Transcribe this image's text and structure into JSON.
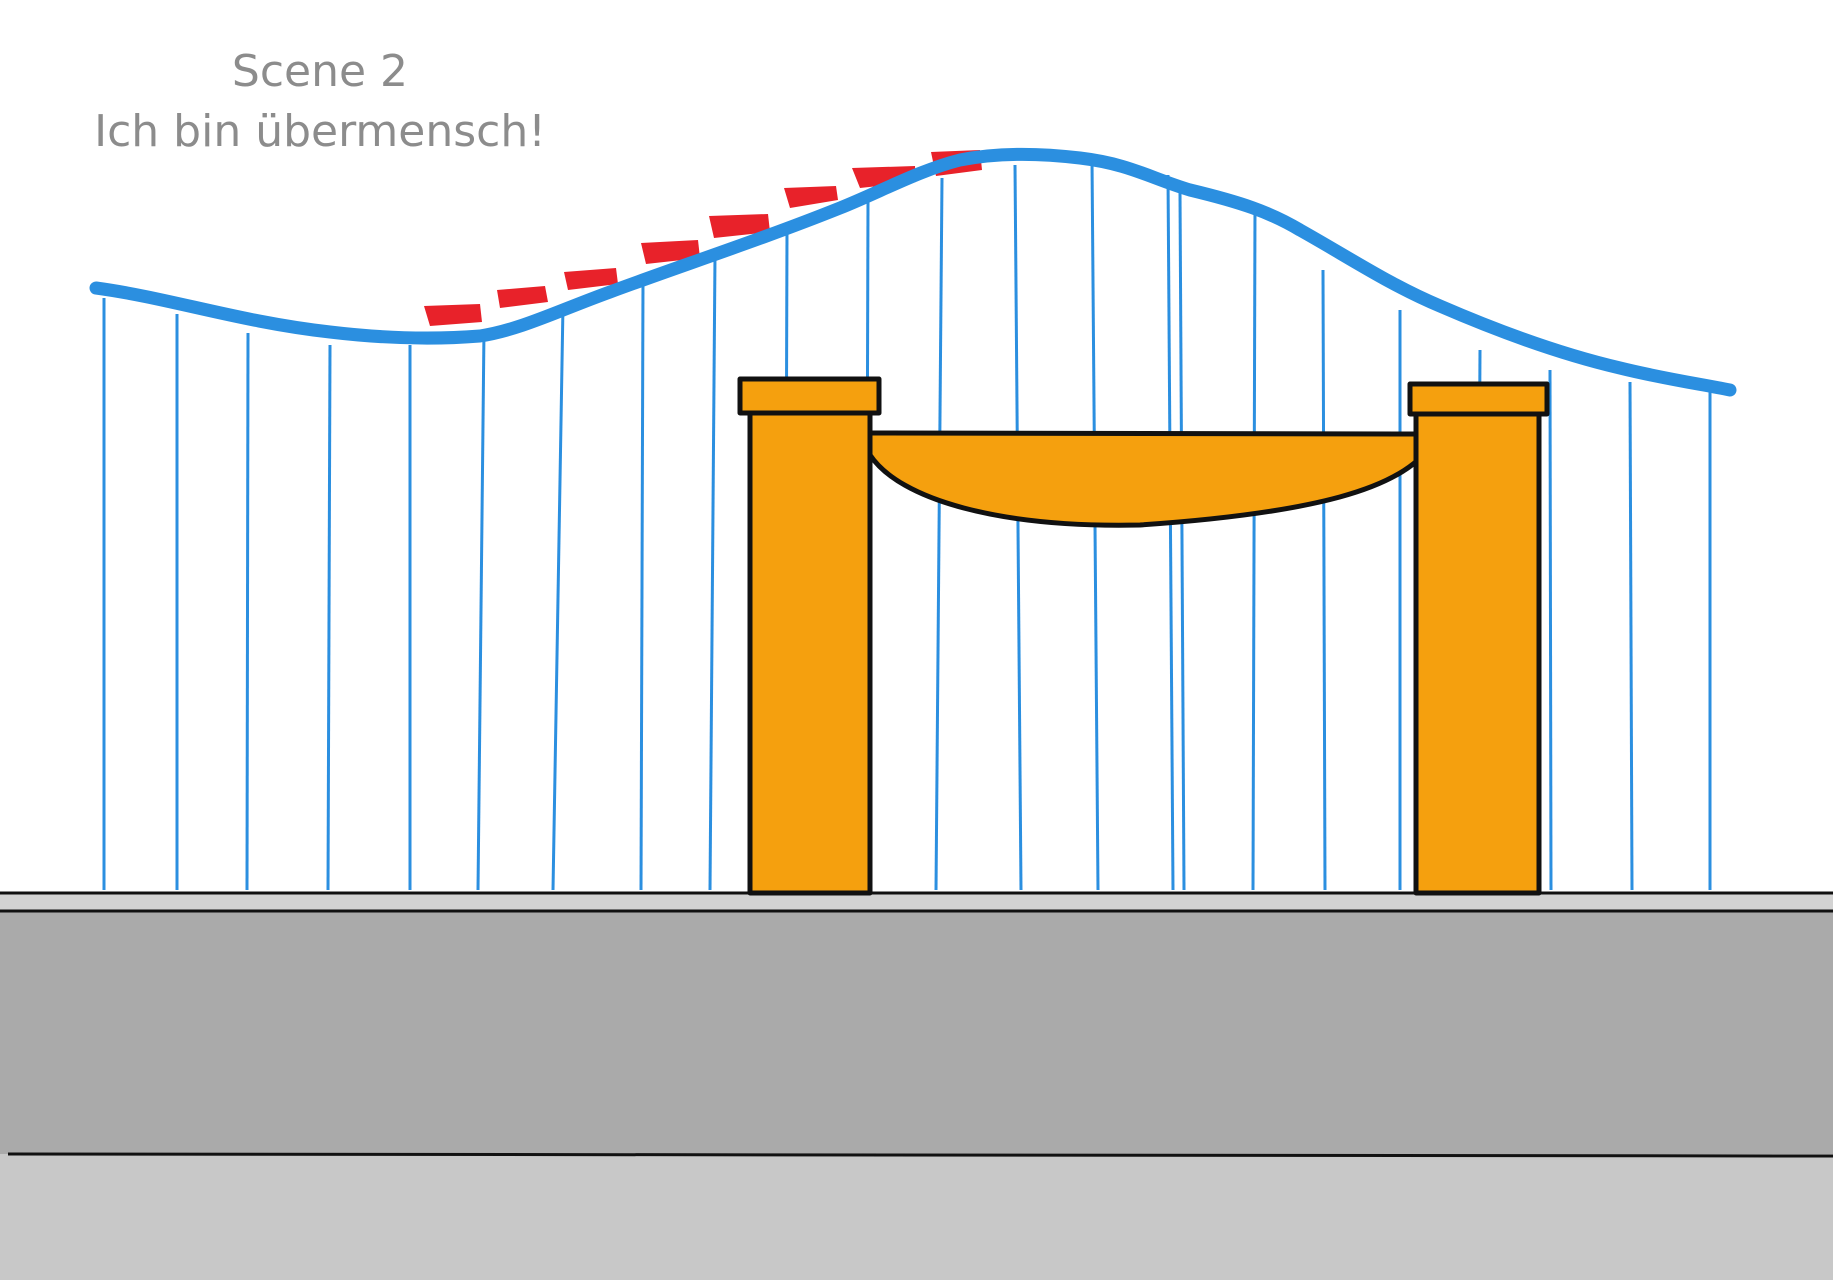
{
  "caption": {
    "line1": "Scene 2",
    "line2": "Ich bin übermensch!"
  },
  "colors": {
    "track": "#2b8fe0",
    "supports": "#2b8fe0",
    "cars": "#e8222a",
    "gate": "#f5a00e",
    "outline": "#111111",
    "ground_top": "#d3d3d3",
    "ground_middle": "#aaaaaa",
    "ground_bottom": "#c8c8c8"
  },
  "icons": {
    "track": "roller-coaster-track",
    "cars": "coaster-car",
    "gate": "entrance-gate"
  }
}
